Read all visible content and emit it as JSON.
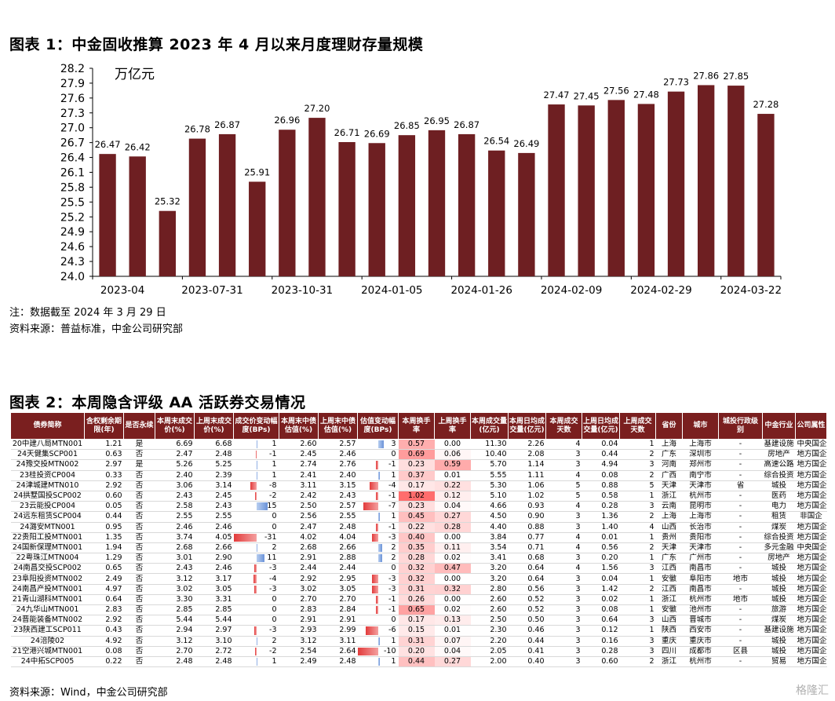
{
  "fig1": {
    "title": "图表 1：中金固收推算 2023 年 4 月以来月度理财存量规模",
    "note": "注：数据截至 2024 年 3 月 29 日",
    "source": "资料来源：普益标准，中金公司研究部"
  },
  "chart_data": {
    "type": "bar",
    "unit_label": "万亿元",
    "ylim": [
      24.0,
      28.2
    ],
    "yticks": [
      "24.0",
      "24.3",
      "24.6",
      "24.9",
      "25.2",
      "25.5",
      "25.8",
      "26.1",
      "26.4",
      "26.7",
      "27.0",
      "27.3",
      "27.6",
      "27.9",
      "28.2"
    ],
    "xticks": [
      "2023-04",
      "2023-07-31",
      "2023-10-31",
      "2024-01-05",
      "2024-01-26",
      "2024-02-09",
      "2024-02-29",
      "2024-03-22"
    ],
    "values": [
      26.47,
      26.42,
      25.32,
      26.78,
      26.87,
      25.91,
      26.96,
      27.2,
      26.71,
      26.69,
      26.85,
      26.95,
      26.87,
      26.54,
      26.49,
      27.47,
      27.45,
      27.56,
      27.48,
      27.73,
      27.86,
      27.85,
      27.28
    ],
    "labels": [
      "26.47",
      "26.42",
      "25.32",
      "26.78",
      "26.87",
      "25.91",
      "26.96",
      "27.20",
      "26.71",
      "26.69",
      "26.85",
      "26.95",
      "26.87",
      "26.54",
      "26.49",
      "27.47",
      "27.45",
      "27.56",
      "27.48",
      "27.73",
      "27.86",
      "27.85",
      "27.28"
    ],
    "bar_color": "#6e1f22",
    "grid": false
  },
  "fig2": {
    "title": "图表 2：本周隐含评级 AA 活跃券交易情况",
    "source": "资料来源：Wind，中金公司研究部",
    "watermark": "格隆汇",
    "headers": [
      "债券简称",
      "含权剩余期限(年)",
      "是否永续",
      "本周末成交价(%)",
      "上周末成交价(%)",
      "成交价变动幅度(BPs)",
      "本周末中债估值(%)",
      "上周末中债估值(%)",
      "估值变动幅度(BPs)",
      "本周换手率",
      "上周换手率",
      "本周成交量(亿元)",
      "本周日均成交量(亿元)",
      "本周成交天数",
      "上周日均成交量(亿元)",
      "上周成交天数",
      "省份",
      "城市",
      "城投行政级别",
      "中金行业",
      "公司属性"
    ],
    "rows": [
      [
        "20中建八局MTN001",
        "1.21",
        "是",
        "6.69",
        "6.68",
        "1",
        "2.60",
        "2.57",
        "3",
        "0.57",
        "0.00",
        "11.30",
        "2.26",
        "4",
        "0.04",
        "1",
        "上海",
        "上海市",
        "-",
        "基建设施",
        "中央国企"
      ],
      [
        "24天健集SCP001",
        "0.63",
        "否",
        "2.47",
        "2.48",
        "-1",
        "2.45",
        "2.46",
        "0",
        "0.69",
        "0.06",
        "10.40",
        "2.08",
        "3",
        "0.44",
        "2",
        "广东",
        "深圳市",
        "-",
        "房地产",
        "地方国企"
      ],
      [
        "24豫交投MTN002",
        "2.97",
        "是",
        "5.26",
        "5.25",
        "1",
        "2.74",
        "2.76",
        "-1",
        "0.23",
        "0.59",
        "5.70",
        "1.14",
        "3",
        "4.94",
        "3",
        "河南",
        "郑州市",
        "-",
        "高速公路",
        "地方国企"
      ],
      [
        "23桂投资CP004",
        "0.33",
        "否",
        "2.40",
        "2.39",
        "1",
        "2.41",
        "2.40",
        "1",
        "0.37",
        "0.01",
        "5.55",
        "1.11",
        "4",
        "0.08",
        "2",
        "广西",
        "南宁市",
        "-",
        "综合投资",
        "地方国企"
      ],
      [
        "24津城建MTN010",
        "2.92",
        "否",
        "3.06",
        "3.14",
        "-8",
        "3.11",
        "3.15",
        "-4",
        "0.17",
        "0.22",
        "5.30",
        "1.06",
        "5",
        "0.88",
        "5",
        "天津",
        "天津市",
        "省",
        "城投",
        "地方国企"
      ],
      [
        "24拱墅国投SCP002",
        "0.60",
        "否",
        "2.43",
        "2.45",
        "-2",
        "2.42",
        "2.43",
        "-1",
        "1.02",
        "0.12",
        "5.10",
        "1.02",
        "5",
        "0.58",
        "1",
        "浙江",
        "杭州市",
        "-",
        "医药",
        "地方国企"
      ],
      [
        "23云能投CP004",
        "0.05",
        "否",
        "2.58",
        "2.43",
        "15",
        "2.50",
        "2.57",
        "-7",
        "0.23",
        "0.04",
        "4.66",
        "0.93",
        "4",
        "0.28",
        "3",
        "云南",
        "昆明市",
        "-",
        "电力",
        "地方国企"
      ],
      [
        "24远东租赁SCP004",
        "0.44",
        "否",
        "2.55",
        "2.55",
        "0",
        "2.56",
        "2.55",
        "1",
        "0.45",
        "0.27",
        "4.50",
        "0.90",
        "3",
        "1.36",
        "2",
        "上海",
        "上海市",
        "-",
        "租赁",
        "非国企"
      ],
      [
        "24潞安MTN001",
        "0.95",
        "否",
        "2.46",
        "2.46",
        "0",
        "2.47",
        "2.48",
        "-1",
        "0.22",
        "0.28",
        "4.40",
        "0.88",
        "3",
        "1.40",
        "4",
        "山西",
        "长治市",
        "-",
        "煤炭",
        "地方国企"
      ],
      [
        "22贵阳工投MTN001",
        "1.35",
        "否",
        "3.74",
        "4.05",
        "-31",
        "4.02",
        "4.04",
        "-3",
        "0.40",
        "0.00",
        "3.84",
        "0.77",
        "4",
        "0.01",
        "1",
        "贵州",
        "贵阳市",
        "-",
        "综合投资",
        "地方国企"
      ],
      [
        "24国新保理MTN001",
        "1.94",
        "否",
        "2.68",
        "2.66",
        "2",
        "2.68",
        "2.66",
        "2",
        "0.35",
        "0.11",
        "3.54",
        "0.71",
        "4",
        "0.56",
        "2",
        "天津",
        "天津市",
        "-",
        "多元金融",
        "中央国企"
      ],
      [
        "22粤珠江MTN004",
        "1.29",
        "否",
        "3.01",
        "2.90",
        "11",
        "2.91",
        "2.88",
        "2",
        "0.28",
        "0.02",
        "3.41",
        "0.68",
        "3",
        "0.20",
        "1",
        "广东",
        "广州市",
        "-",
        "房地产",
        "地方国企"
      ],
      [
        "24南昌交投SCP002",
        "0.65",
        "否",
        "2.43",
        "2.46",
        "-3",
        "2.44",
        "2.44",
        "0",
        "0.32",
        "0.47",
        "3.20",
        "0.64",
        "4",
        "1.56",
        "3",
        "江西",
        "南昌市",
        "-",
        "城投",
        "地方国企"
      ],
      [
        "23阜阳投资MTN002",
        "2.49",
        "否",
        "3.12",
        "3.17",
        "-4",
        "2.92",
        "2.95",
        "-3",
        "0.32",
        "0.00",
        "3.20",
        "0.64",
        "3",
        "0.04",
        "1",
        "安徽",
        "阜阳市",
        "地市",
        "城投",
        "地方国企"
      ],
      [
        "24南昌产投MTN001",
        "4.97",
        "否",
        "3.02",
        "3.05",
        "-3",
        "3.02",
        "3.05",
        "-3",
        "0.31",
        "0.32",
        "2.80",
        "0.56",
        "3",
        "1.42",
        "2",
        "江西",
        "南昌市",
        "-",
        "城投",
        "地方国企"
      ],
      [
        "21青山湖科MTN001",
        "0.64",
        "否",
        "3.30",
        "3.31",
        "0",
        "2.70",
        "2.70",
        "-1",
        "0.26",
        "0.00",
        "2.60",
        "0.52",
        "3",
        "0.02",
        "1",
        "浙江",
        "杭州市",
        "地市",
        "城投",
        "地方国企"
      ],
      [
        "24九华山MTN001",
        "2.83",
        "否",
        "2.85",
        "2.85",
        "0",
        "2.83",
        "2.84",
        "-1",
        "0.65",
        "0.02",
        "2.60",
        "0.52",
        "3",
        "0.08",
        "1",
        "安徽",
        "池州市",
        "-",
        "旅游",
        "地方国企"
      ],
      [
        "24晋能装备MTN002",
        "2.92",
        "否",
        "5.44",
        "5.44",
        "0",
        "2.91",
        "2.91",
        "0",
        "0.17",
        "0.13",
        "2.50",
        "0.50",
        "3",
        "0.64",
        "3",
        "山西",
        "晋城市",
        "-",
        "煤炭",
        "地方国企"
      ],
      [
        "23陕西建工SCP011",
        "0.43",
        "否",
        "2.94",
        "2.97",
        "-3",
        "2.93",
        "2.99",
        "-6",
        "0.15",
        "0.01",
        "2.30",
        "0.46",
        "3",
        "0.12",
        "1",
        "陕西",
        "西安市",
        "-",
        "基建设施",
        "地方国企"
      ],
      [
        "24涪陵02",
        "4.92",
        "否",
        "3.12",
        "3.10",
        "2",
        "3.12",
        "3.11",
        "1",
        "0.31",
        "0.07",
        "2.20",
        "0.44",
        "3",
        "0.16",
        "3",
        "重庆",
        "重庆市",
        "-",
        "城投",
        "地方国企"
      ],
      [
        "21空港兴城MTN001",
        "0.08",
        "否",
        "2.70",
        "2.72",
        "-2",
        "2.54",
        "2.64",
        "-10",
        "0.20",
        "0.04",
        "2.05",
        "0.41",
        "3",
        "0.28",
        "3",
        "四川",
        "成都市",
        "区县",
        "城投",
        "地方国企"
      ],
      [
        "24中拓SCP005",
        "0.22",
        "否",
        "2.48",
        "2.48",
        "1",
        "2.49",
        "2.48",
        "1",
        "0.44",
        "0.27",
        "2.00",
        "0.40",
        "3",
        "0.60",
        "2",
        "浙江",
        "杭州市",
        "-",
        "贸易",
        "地方国企"
      ]
    ]
  }
}
